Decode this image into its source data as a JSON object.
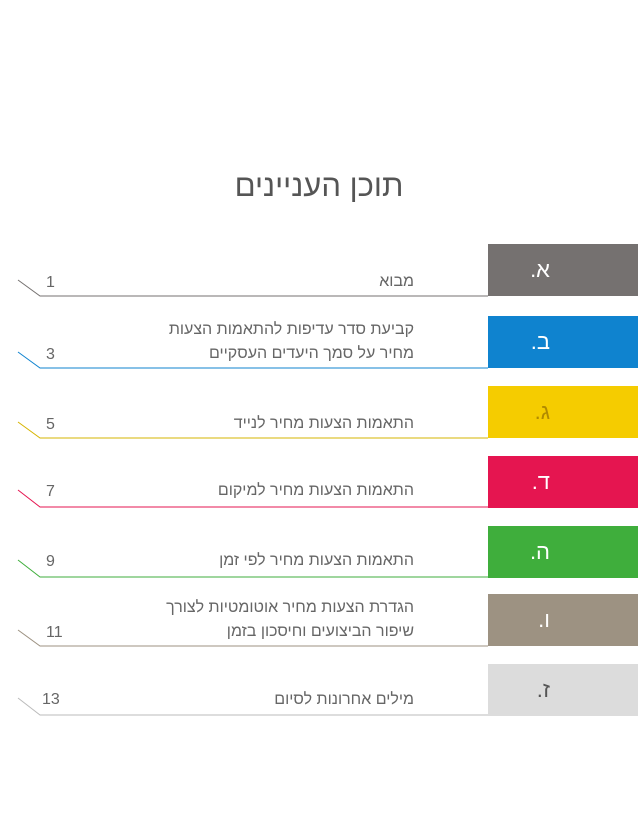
{
  "title": "תוכן העניינים",
  "entries": [
    {
      "letter": "א.",
      "lines": [
        "מבוא"
      ],
      "page": "1",
      "color": "#757170"
    },
    {
      "letter": "ב.",
      "lines": [
        "קביעת סדר עדיפות להתאמות הצעות",
        "מחיר על סמך היעדים העסקיים"
      ],
      "page": "3",
      "color": "#0f83cf"
    },
    {
      "letter": "ג.",
      "lines": [
        "התאמות הצעות מחיר לנייד"
      ],
      "page": "5",
      "color": "#f5cc00"
    },
    {
      "letter": "ד.",
      "lines": [
        "התאמות הצעות מחיר למיקום"
      ],
      "page": "7",
      "color": "#e51550"
    },
    {
      "letter": "ה.",
      "lines": [
        "התאמות הצעות מחיר לפי זמן"
      ],
      "page": "9",
      "color": "#3fae3c"
    },
    {
      "letter": "ו.",
      "lines": [
        "הגדרת הצעות מחיר אוטומטיות לצורך",
        "שיפור הביצועים וחיסכון בזמן"
      ],
      "page": "11",
      "color": "#9d9282"
    },
    {
      "letter": "ז.",
      "lines": [
        "מילים אחרונות לסיום"
      ],
      "page": "13",
      "color": "#dcdcdc"
    }
  ]
}
